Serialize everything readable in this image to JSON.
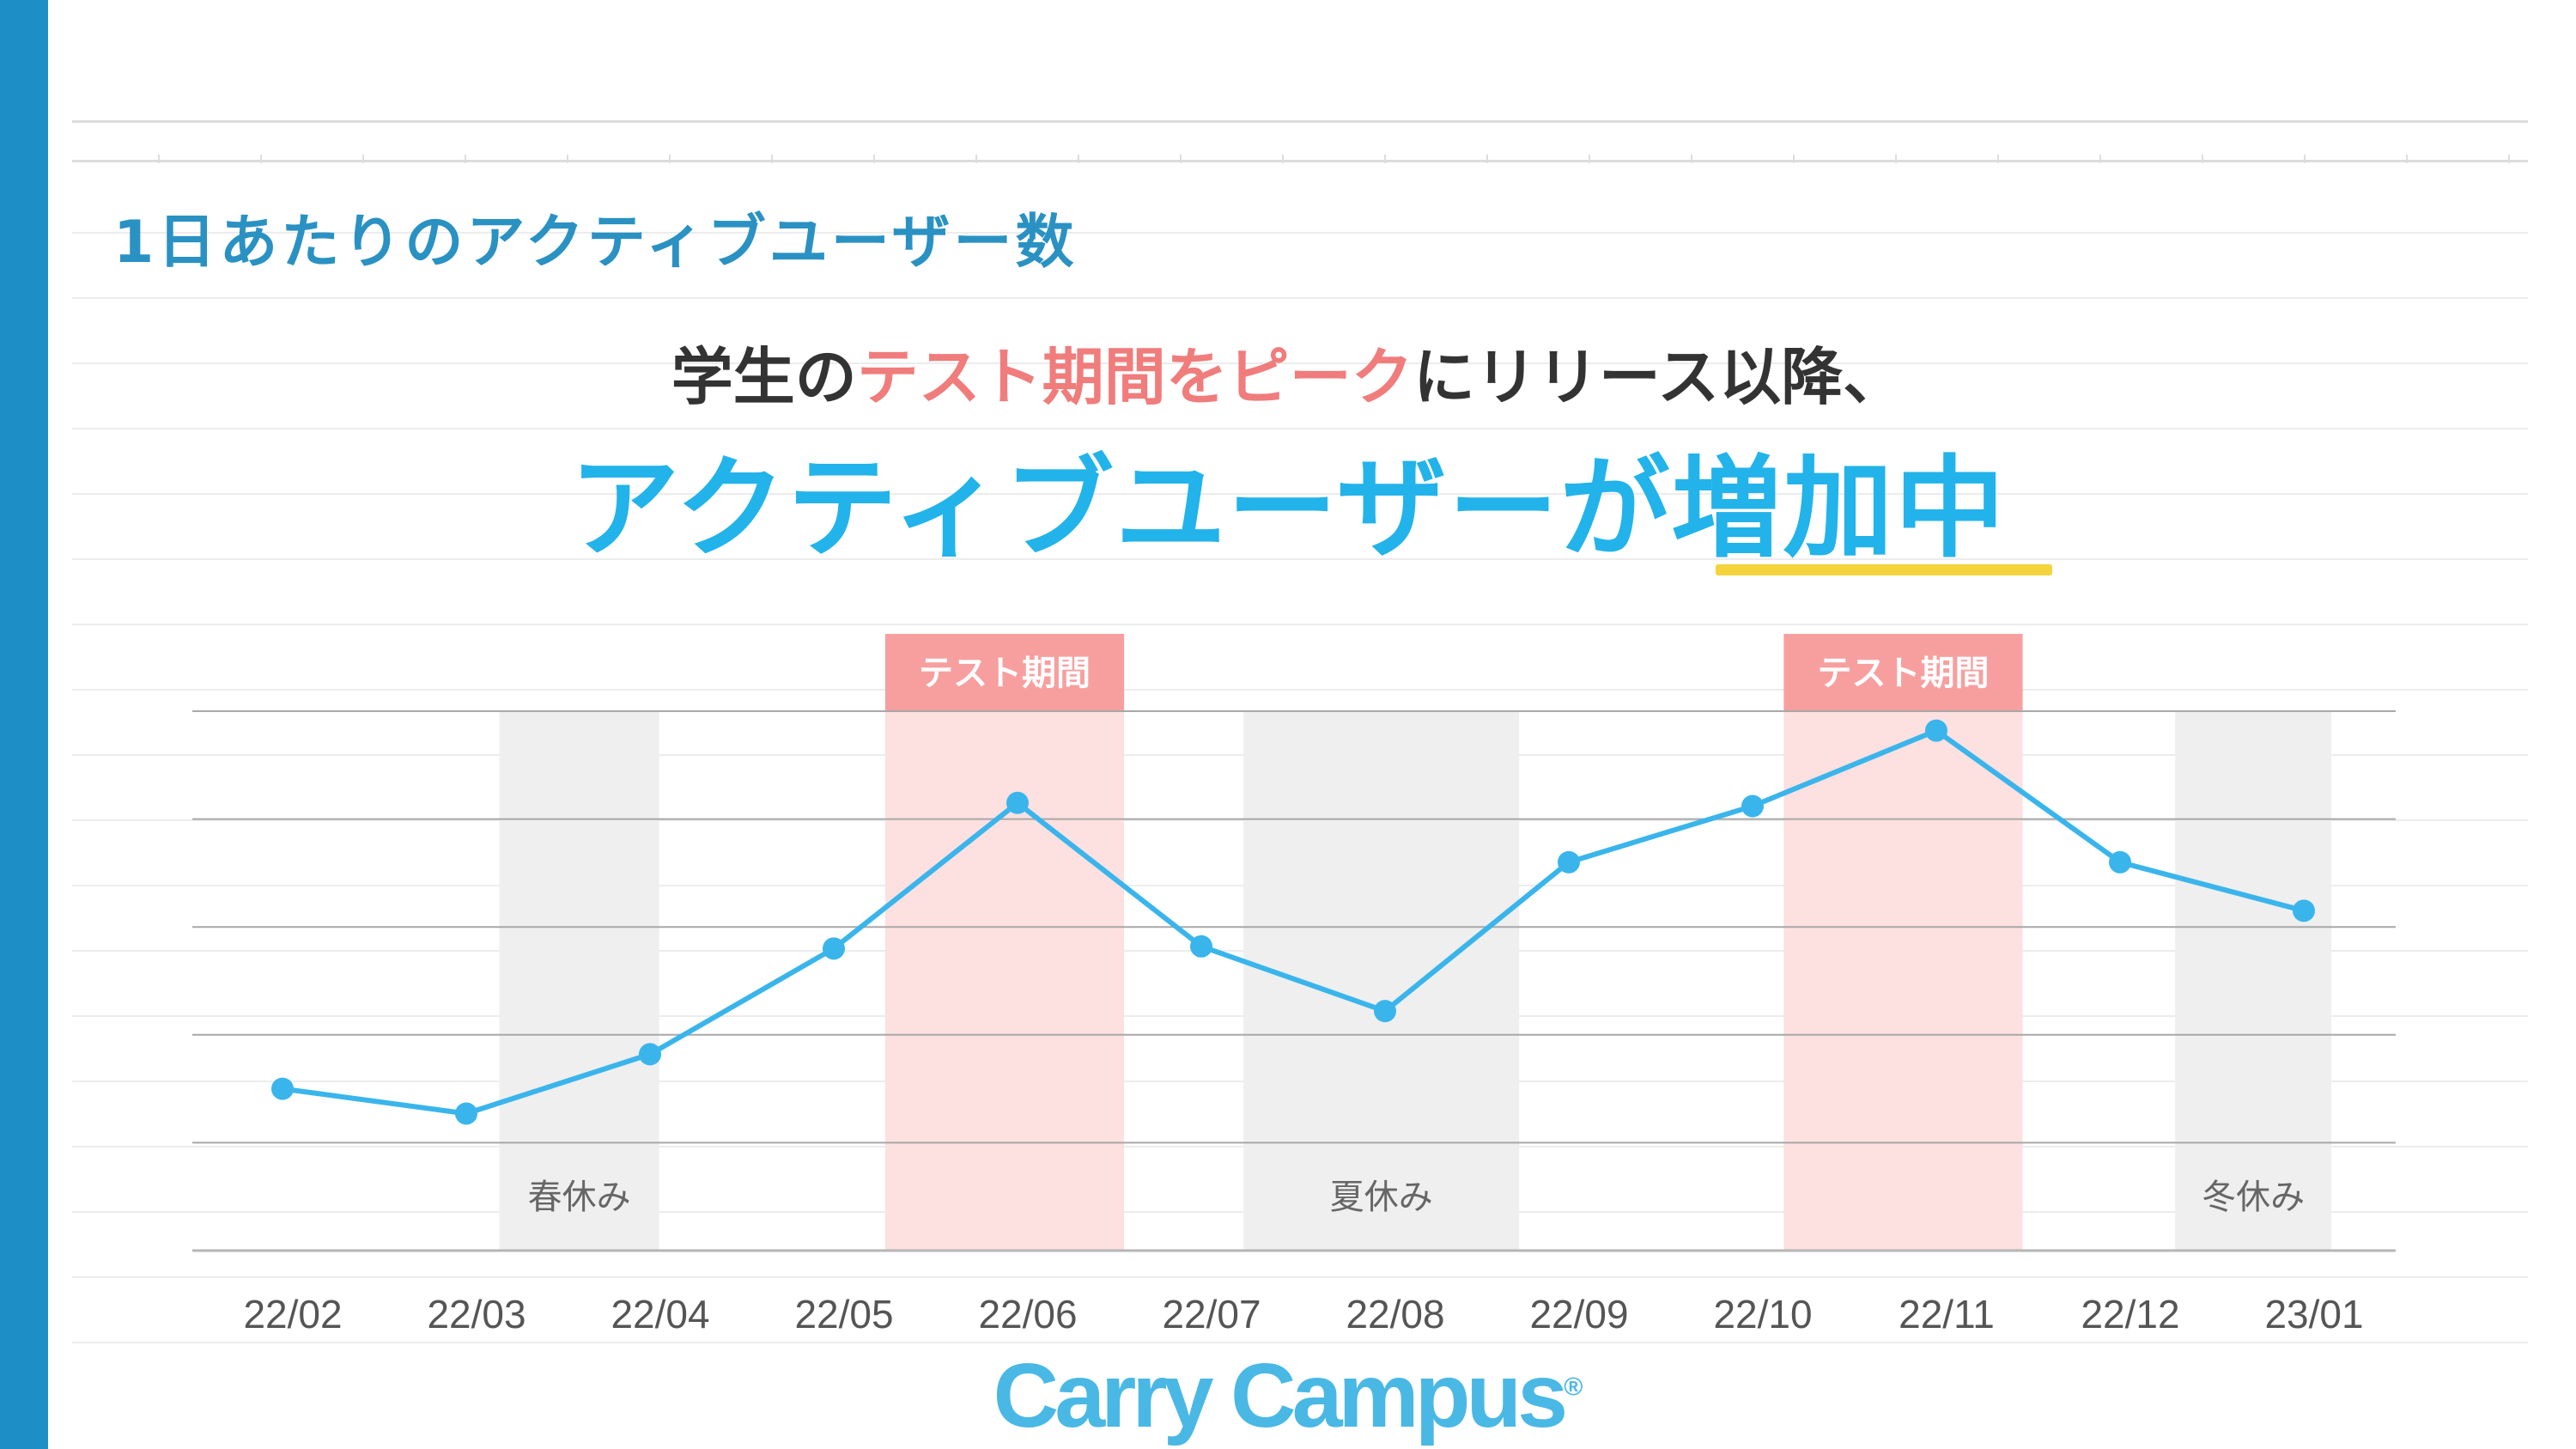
{
  "header": {
    "section_title": "1日あたりのアクティブユーザー数",
    "subtitle_prefix": "学生の",
    "subtitle_accent": "テスト期間をピーク",
    "subtitle_suffix": "にリリース以降、",
    "headline_main": "アクティブユーザーが",
    "headline_emphasis": "増加中"
  },
  "colors": {
    "sidebar": "#1e8fc6",
    "section_title": "#2a91c3",
    "headline": "#22b3ea",
    "accent_text": "#f07c7c",
    "line": "#3ab5ec",
    "test_band": "#fde0e0",
    "test_label_bg": "#f79f9f",
    "holiday_band": "#efefef",
    "underline": "#f5d33c"
  },
  "chart_data": {
    "type": "line",
    "categories": [
      "22/02",
      "22/03",
      "22/04",
      "22/05",
      "22/06",
      "22/07",
      "22/08",
      "22/09",
      "22/10",
      "22/11",
      "22/12",
      "23/01"
    ],
    "series": [
      {
        "values": [
          1.5,
          1.27,
          1.82,
          2.8,
          4.15,
          2.82,
          2.22,
          3.6,
          4.12,
          4.82,
          3.6,
          3.15
        ]
      }
    ],
    "ylim": [
      0,
      5
    ],
    "y_axis_labels": "none",
    "grid": true,
    "highlight_periods": [
      {
        "label": "テスト期間",
        "kind": "test",
        "start": 3.28,
        "end": 4.58
      },
      {
        "label": "テスト期間",
        "kind": "test",
        "start": 8.17,
        "end": 9.47
      },
      {
        "label": "春休み",
        "kind": "holiday",
        "start": 1.18,
        "end": 2.05
      },
      {
        "label": "夏休み",
        "kind": "holiday",
        "start": 5.23,
        "end": 6.73
      },
      {
        "label": "冬休み",
        "kind": "holiday",
        "start": 10.3,
        "end": 11.15
      }
    ]
  },
  "logo": {
    "text": "Carry Campus",
    "mark": "®"
  }
}
